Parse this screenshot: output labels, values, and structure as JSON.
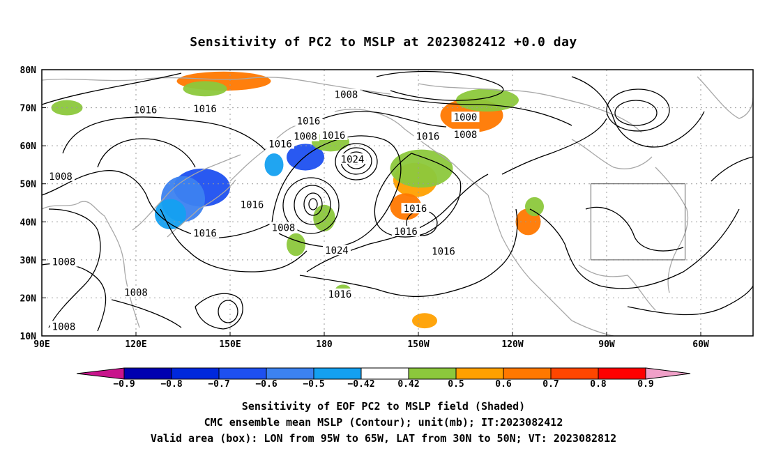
{
  "title": "Sensitivity of PC2 to MSLP at 2023082412 +0.0 day",
  "lat_labels": [
    "80N",
    "70N",
    "60N",
    "50N",
    "40N",
    "30N",
    "20N",
    "10N"
  ],
  "lon_labels": [
    "90E",
    "120E",
    "150E",
    "180",
    "150W",
    "120W",
    "90W",
    "60W"
  ],
  "contour_labels": [
    {
      "text": "1008",
      "lon": 187,
      "lat": 73.5
    },
    {
      "text": "1016",
      "lon": 175,
      "lat": 66.5
    },
    {
      "text": "1016",
      "lon": 123,
      "lat": 69.5
    },
    {
      "text": "1016",
      "lon": 142,
      "lat": 69.7
    },
    {
      "text": "1008",
      "lon": 174,
      "lat": 62.5
    },
    {
      "text": "1016",
      "lon": 183,
      "lat": 62.8
    },
    {
      "text": "1016",
      "lon": 166,
      "lat": 60.5
    },
    {
      "text": "1024",
      "lon": 189,
      "lat": 56.5
    },
    {
      "text": "1016",
      "lon": 213,
      "lat": 62.5
    },
    {
      "text": "1000",
      "lon": 225,
      "lat": 67.5
    },
    {
      "text": "1008",
      "lon": 225,
      "lat": 63.0
    },
    {
      "text": "1008",
      "lon": 96,
      "lat": 52.0
    },
    {
      "text": "1016",
      "lon": 157,
      "lat": 44.5
    },
    {
      "text": "1016",
      "lon": 142,
      "lat": 37.0
    },
    {
      "text": "1008",
      "lon": 167,
      "lat": 38.5
    },
    {
      "text": "1016",
      "lon": 209,
      "lat": 43.5
    },
    {
      "text": "1016",
      "lon": 206,
      "lat": 37.5
    },
    {
      "text": "1024",
      "lon": 184,
      "lat": 32.5
    },
    {
      "text": "1016",
      "lon": 218,
      "lat": 32.3
    },
    {
      "text": "1008",
      "lon": 97,
      "lat": 29.5
    },
    {
      "text": "1008",
      "lon": 120,
      "lat": 21.5
    },
    {
      "text": "1016",
      "lon": 185,
      "lat": 21.0
    },
    {
      "text": "1008",
      "lon": 97,
      "lat": 12.5
    }
  ],
  "colorbar": {
    "labels": [
      "−0.9",
      "−0.8",
      "−0.7",
      "−0.6",
      "−0.5",
      "−0.42",
      "0.42",
      "0.5",
      "0.6",
      "0.7",
      "0.8",
      "0.9"
    ],
    "colors": [
      "#0000b0",
      "#0028dc",
      "#1e50f0",
      "#3c82f0",
      "#14a0f0",
      "#ffffff",
      "#8cc83c",
      "#ffa000",
      "#ff7800",
      "#ff4600",
      "#ff0000"
    ],
    "under_color": "#c8148c",
    "over_color": "#f0a0c8"
  },
  "shaded_regions": [
    {
      "color": "#1e50f0",
      "lon": 141,
      "lat": 49,
      "rx": 18,
      "ry": 10
    },
    {
      "color": "#3c82f0",
      "lon": 135,
      "lat": 46,
      "rx": 14,
      "ry": 12
    },
    {
      "color": "#14a0f0",
      "lon": 131,
      "lat": 42,
      "rx": 10,
      "ry": 8
    },
    {
      "color": "#1e50f0",
      "lon": 174,
      "lat": 57,
      "rx": 12,
      "ry": 7
    },
    {
      "color": "#14a0f0",
      "lon": 164,
      "lat": 55,
      "rx": 6,
      "ry": 6
    },
    {
      "color": "#ff7800",
      "lon": 148,
      "lat": 77,
      "rx": 30,
      "ry": 5
    },
    {
      "color": "#8cc83c",
      "lon": 142,
      "lat": 75,
      "rx": 14,
      "ry": 4
    },
    {
      "color": "#8cc83c",
      "lon": 98,
      "lat": 70,
      "rx": 10,
      "ry": 4
    },
    {
      "color": "#8cc83c",
      "lon": 182,
      "lat": 61,
      "rx": 12,
      "ry": 5
    },
    {
      "color": "#ffa000",
      "lon": 209,
      "lat": 51,
      "rx": 14,
      "ry": 9
    },
    {
      "color": "#ff7800",
      "lon": 206,
      "lat": 44,
      "rx": 10,
      "ry": 7
    },
    {
      "color": "#8cc83c",
      "lon": 211,
      "lat": 54,
      "rx": 20,
      "ry": 10
    },
    {
      "color": "#8cc83c",
      "lon": 180,
      "lat": 41,
      "rx": 7,
      "ry": 7
    },
    {
      "color": "#8cc83c",
      "lon": 171,
      "lat": 34,
      "rx": 6,
      "ry": 6
    },
    {
      "color": "#ff7800",
      "lon": 227,
      "lat": 68,
      "rx": 20,
      "ry": 9
    },
    {
      "color": "#8cc83c",
      "lon": 232,
      "lat": 72,
      "rx": 20,
      "ry": 6
    },
    {
      "color": "#ff7800",
      "lon": 245,
      "lat": 40,
      "rx": 8,
      "ry": 7
    },
    {
      "color": "#8cc83c",
      "lon": 247,
      "lat": 44,
      "rx": 6,
      "ry": 5
    },
    {
      "color": "#ffa000",
      "lon": 212,
      "lat": 14,
      "rx": 8,
      "ry": 4
    },
    {
      "color": "#8cc83c",
      "lon": 186,
      "lat": 22,
      "rx": 5,
      "ry": 3
    }
  ],
  "valid_box": {
    "lon_from": -95,
    "lon_to": -65,
    "lat_from": 30,
    "lat_to": 50
  },
  "captions": [
    "Sensitivity of EOF PC2 to MSLP field (Shaded)",
    "CMC ensemble mean MSLP (Contour); unit(mb); IT:2023082412",
    "Valid area (box): LON from 95W to 65W, LAT from 30N to 50N; VT: 2023082812"
  ]
}
